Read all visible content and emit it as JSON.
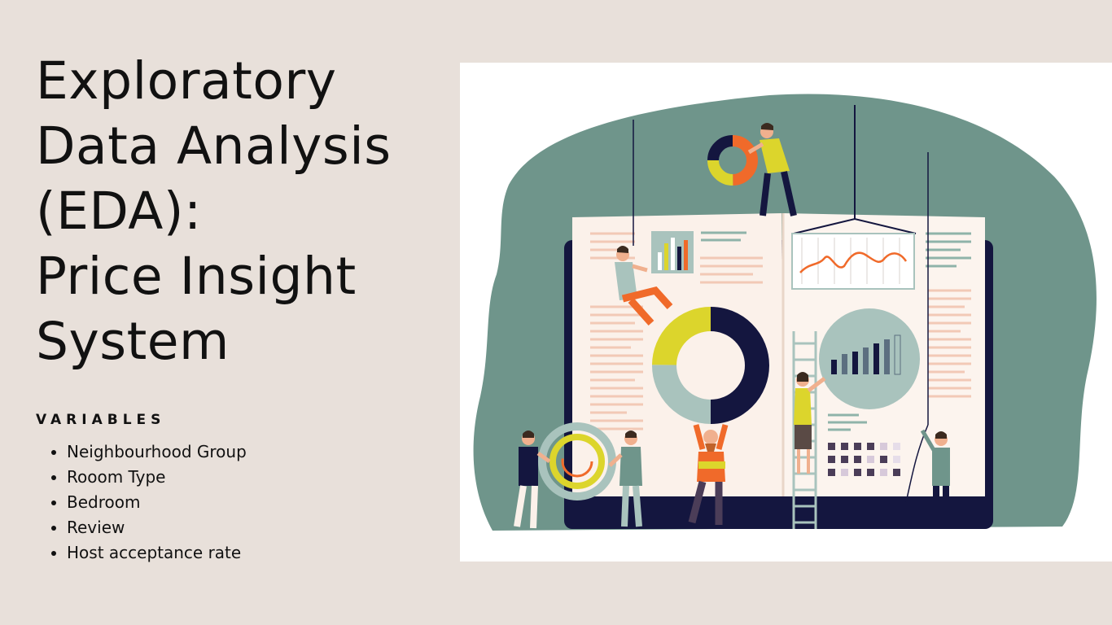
{
  "title": {
    "lines": [
      "Exploratory",
      "Data Analysis",
      "(EDA):",
      "Price Insight",
      "System"
    ]
  },
  "variables": {
    "heading": "VARIABLES",
    "items": [
      "Neighbourhood Group",
      "Rooom Type",
      "Bedroom",
      "Review",
      "Host acceptance rate"
    ]
  },
  "illustration": {
    "subject": "people-building-data-book-illustration",
    "colors": {
      "background": "#e8e0da",
      "panel": "#ffffff",
      "blob": "#6f958b",
      "navy": "#14163f",
      "yellow": "#dcd52c",
      "orange": "#f06a2a",
      "sage": "#a9c3bd",
      "page": "#fbf1ea"
    }
  }
}
